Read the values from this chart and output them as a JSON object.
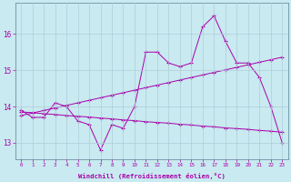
{
  "xlabel": "Windchill (Refroidissement éolien,°C)",
  "background_color": "#c8eaf0",
  "grid_color": "#b0ccd8",
  "line_color": "#aa00aa",
  "x": [
    0,
    1,
    2,
    3,
    4,
    5,
    6,
    7,
    8,
    9,
    10,
    11,
    12,
    13,
    14,
    15,
    16,
    17,
    18,
    19,
    20,
    21,
    22,
    23
  ],
  "y_zigzag": [
    13.9,
    13.7,
    13.7,
    14.1,
    14.0,
    13.6,
    13.5,
    12.8,
    13.5,
    13.4,
    14.0,
    15.5,
    15.5,
    15.2,
    15.1,
    15.2,
    16.2,
    16.5,
    15.8,
    15.2,
    15.2,
    14.8,
    14.0,
    13.0
  ],
  "y_line_up": [
    13.75,
    13.82,
    13.89,
    13.96,
    14.03,
    14.1,
    14.17,
    14.24,
    14.31,
    14.38,
    14.45,
    14.52,
    14.59,
    14.66,
    14.73,
    14.8,
    14.87,
    14.94,
    15.01,
    15.08,
    15.15,
    15.22,
    15.29,
    15.36
  ],
  "y_line_down": [
    13.85,
    13.83,
    13.8,
    13.78,
    13.75,
    13.73,
    13.71,
    13.68,
    13.66,
    13.63,
    13.61,
    13.58,
    13.56,
    13.54,
    13.51,
    13.49,
    13.46,
    13.44,
    13.41,
    13.39,
    13.37,
    13.34,
    13.32,
    13.29
  ],
  "ylim": [
    12.55,
    16.85
  ],
  "xlim": [
    -0.5,
    23.5
  ],
  "yticks": [
    13,
    14,
    15,
    16
  ],
  "xticks": [
    0,
    1,
    2,
    3,
    4,
    5,
    6,
    7,
    8,
    9,
    10,
    11,
    12,
    13,
    14,
    15,
    16,
    17,
    18,
    19,
    20,
    21,
    22,
    23
  ]
}
